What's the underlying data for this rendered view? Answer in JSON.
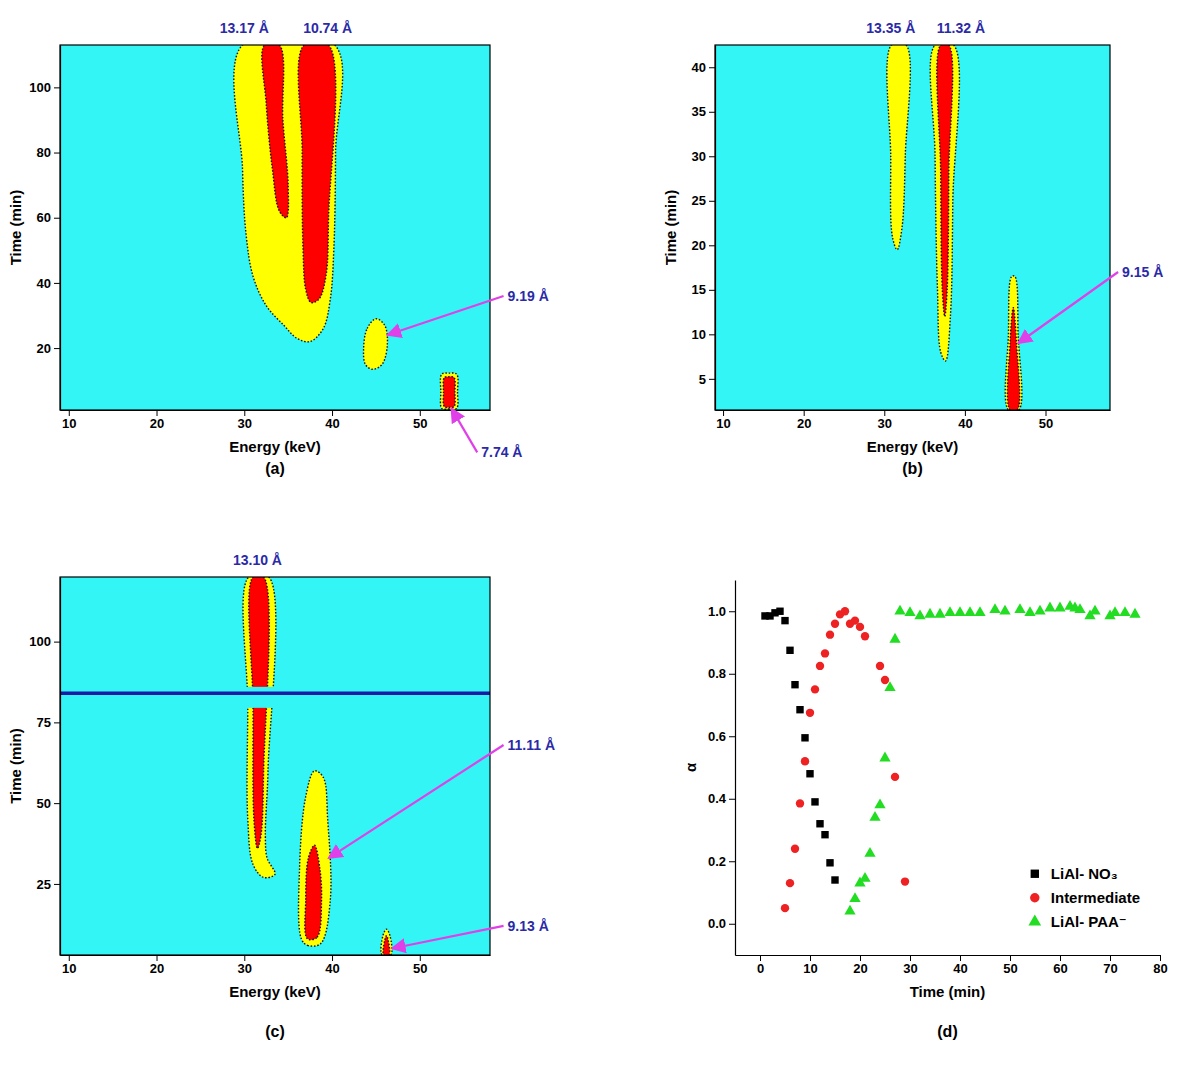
{
  "chart_data": [
    {
      "type": "contour",
      "title": "(a)",
      "x_label": "Energy (keV)",
      "y_label": "Time (min)",
      "xlim": [
        9,
        58
      ],
      "xticks": [
        10,
        20,
        30,
        40,
        50
      ],
      "ylim": [
        1,
        113
      ],
      "yticks": [
        20,
        40,
        60,
        80,
        100
      ],
      "series": [
        {
          "color": "#ffff00",
          "x": [
            29.8,
            40.3,
            40.4,
            40.2,
            39.8,
            39.0,
            37.5,
            36.0,
            34.5,
            32.5,
            31.0,
            30.2,
            29.8
          ],
          "values": [
            113,
            113,
            80,
            50,
            35,
            26,
            22,
            23,
            27,
            33,
            42,
            55,
            75
          ]
        },
        {
          "color": "#ff0000",
          "x": [
            36.8,
            39.6,
            39.6,
            39.3,
            38.5,
            37.6,
            37.0,
            36.7,
            36.6
          ],
          "values": [
            113,
            113,
            60,
            42,
            35,
            34,
            38,
            50,
            80
          ]
        },
        {
          "color": "#ff0000",
          "x": [
            32.3,
            34.0,
            34.4,
            35.0,
            34.8,
            34.0,
            33.2,
            32.5
          ],
          "values": [
            113,
            113,
            90,
            70,
            60,
            62,
            75,
            95
          ]
        },
        {
          "color": "#ffff00",
          "x": [
            43.6,
            44.0,
            45.0,
            46.0,
            46.3,
            45.7,
            44.6,
            43.8
          ],
          "values": [
            20,
            26,
            29,
            27,
            21,
            15,
            13.5,
            15
          ]
        },
        {
          "color": "#ffff00",
          "x": [
            52.5,
            53.3,
            54.2,
            54.3,
            54.2,
            53.3,
            52.5,
            52.4
          ],
          "values": [
            1.5,
            1.3,
            1.5,
            6.5,
            12,
            12.3,
            12,
            6.5
          ]
        },
        {
          "color": "#ff0000",
          "x": [
            52.8,
            53.3,
            53.9,
            54.0,
            53.9,
            53.3,
            52.8,
            52.7
          ],
          "values": [
            2,
            1.8,
            2,
            6.5,
            11,
            11.2,
            11,
            6.5
          ]
        }
      ],
      "annotations": [
        {
          "text": "13.17 Å",
          "x": 30
        },
        {
          "text": "10.74 Å",
          "x": 39.5
        },
        {
          "text": "9.19 Å",
          "x": 46.3,
          "y": 24,
          "text_x": 60,
          "text_y": 36
        },
        {
          "text": "7.74 Å",
          "x": 53.6,
          "y": 1.5,
          "text_x": 57,
          "text_y": -12
        }
      ]
    },
    {
      "type": "contour",
      "title": "(b)",
      "x_label": "Energy (keV)",
      "y_label": "Time (min)",
      "xlim": [
        9,
        58
      ],
      "xticks": [
        10,
        20,
        30,
        40,
        50
      ],
      "ylim": [
        1.5,
        42.5
      ],
      "yticks": [
        5,
        10,
        15,
        20,
        25,
        30,
        35,
        40
      ],
      "series": [
        {
          "color": "#ffff00",
          "x": [
            30.9,
            32.7,
            32.6,
            32.2,
            31.6,
            31.0,
            30.8
          ],
          "values": [
            42.5,
            42.5,
            30,
            22,
            19.5,
            21,
            30
          ]
        },
        {
          "color": "#ffff00",
          "x": [
            36.3,
            38.6,
            38.5,
            38.2,
            37.6,
            37.0,
            36.6,
            36.3
          ],
          "values": [
            42.5,
            42.5,
            25,
            12,
            7,
            8,
            15,
            30
          ]
        },
        {
          "color": "#ff0000",
          "x": [
            37.0,
            38.0,
            38.0,
            37.8,
            37.5,
            37.2,
            37.0
          ],
          "values": [
            42.5,
            42.5,
            28,
            15,
            12,
            15,
            28
          ]
        },
        {
          "color": "#ffff00",
          "x": [
            45.4,
            46.7,
            46.6,
            46.2,
            45.8,
            45.4
          ],
          "values": [
            1.5,
            1.5,
            10,
            16.5,
            16.5,
            10
          ]
        },
        {
          "color": "#ff0000",
          "x": [
            45.6,
            46.5,
            46.4,
            46.0,
            45.6
          ],
          "values": [
            1.5,
            1.5,
            9,
            13,
            9
          ]
        }
      ],
      "annotations": [
        {
          "text": "13.35 Å",
          "x": 30.8
        },
        {
          "text": "11.32 Å",
          "x": 39.5
        },
        {
          "text": "9.15 Å",
          "x": 46.6,
          "y": 9,
          "text_x": 59.5,
          "text_y": 17
        }
      ]
    },
    {
      "type": "contour",
      "title": "(c)",
      "x_label": "Energy (keV)",
      "y_label": "Time (min)",
      "xlim": [
        9,
        58
      ],
      "xticks": [
        10,
        20,
        30,
        40,
        50
      ],
      "ylim": [
        3,
        120
      ],
      "yticks": [
        25,
        50,
        75,
        100
      ],
      "series": [
        {
          "color": "#ffff00",
          "x": [
            30.5,
            32.8,
            32.7,
            32.4,
            32.6,
            33.5,
            32.2,
            31.0,
            30.4,
            30.4
          ],
          "values": [
            120,
            120,
            60,
            40,
            33,
            28,
            27,
            31,
            45,
            80
          ]
        },
        {
          "color": "#ff0000",
          "x": [
            31.0,
            32.2,
            32.2,
            31.9,
            31.5,
            31.1,
            31.0
          ],
          "values": [
            120,
            120,
            60,
            40,
            36,
            45,
            80
          ]
        },
        {
          "color": "#ffff00",
          "x": [
            36.5,
            37.2,
            38.7,
            39.8,
            39.5,
            39.0,
            38.0,
            37.0,
            36.3
          ],
          "values": [
            8,
            6,
            6.5,
            20,
            45,
            58,
            60,
            52,
            30
          ]
        },
        {
          "color": "#ff0000",
          "x": [
            37.2,
            38.3,
            38.8,
            38.6,
            38.0,
            37.3,
            37.0
          ],
          "values": [
            8,
            8.5,
            20,
            30,
            37,
            33,
            20
          ]
        },
        {
          "color": "#ffff00",
          "x": [
            45.7,
            46.7,
            46.6,
            46.2,
            45.8
          ],
          "values": [
            3,
            3,
            9,
            11,
            9
          ]
        },
        {
          "color": "#ff0000",
          "x": [
            45.9,
            46.5,
            46.4,
            46.2,
            46.0
          ],
          "values": [
            3,
            3,
            7.5,
            9,
            7.5
          ]
        }
      ],
      "gap": [
        79.5,
        86
      ],
      "scan_line": 84,
      "annotations": [
        {
          "text": "13.10 Å",
          "x": 31.5
        },
        {
          "text": "11.11 Å",
          "x": 39.6,
          "y": 33,
          "text_x": 60,
          "text_y": 68
        },
        {
          "text": "9.13 Å",
          "x": 46.8,
          "y": 5,
          "text_x": 60,
          "text_y": 12
        }
      ]
    },
    {
      "type": "scatter",
      "title": "(d)",
      "x_label": "Time (min)",
      "y_label": "α",
      "xlim": [
        -5,
        80
      ],
      "xticks": [
        0,
        10,
        20,
        30,
        40,
        50,
        60,
        70,
        80
      ],
      "ylim": [
        -0.1,
        1.1
      ],
      "yticks": [
        {
          "value": 0,
          "label": "0.0"
        },
        0.2,
        0.4,
        0.6,
        0.8,
        {
          "value": 1,
          "label": "1.0"
        }
      ],
      "legend": "lower right",
      "series": [
        {
          "name": "LiAl- NO₃",
          "color": "#000000",
          "marker": "square",
          "x": [
            1,
            2,
            3,
            4,
            5,
            6,
            7,
            8,
            9,
            10,
            11,
            12,
            13,
            14,
            15
          ],
          "values": [
            0.985,
            0.985,
            0.995,
            1.0,
            0.97,
            0.875,
            0.765,
            0.685,
            0.595,
            0.48,
            0.39,
            0.32,
            0.285,
            0.195,
            0.14
          ]
        },
        {
          "name": "Intermediate",
          "color": "#ee2222",
          "marker": "circle",
          "x": [
            5,
            6,
            7,
            8,
            9,
            10,
            11,
            12,
            13,
            14,
            15,
            16,
            17,
            18,
            19,
            20,
            21,
            24,
            25,
            27,
            29
          ],
          "values": [
            0.05,
            0.13,
            0.24,
            0.385,
            0.52,
            0.675,
            0.75,
            0.825,
            0.865,
            0.925,
            0.96,
            0.99,
            1.0,
            0.96,
            0.97,
            0.95,
            0.92,
            0.825,
            0.78,
            0.47,
            0.135
          ]
        },
        {
          "name": "LiAl- PAA⁻",
          "color": "#22dd22",
          "marker": "triangle",
          "x": [
            18,
            19,
            20,
            21,
            22,
            23,
            24,
            25,
            26,
            27,
            28,
            30,
            32,
            34,
            36,
            38,
            40,
            42,
            44,
            47,
            49,
            52,
            54,
            56,
            58,
            60,
            62,
            63,
            64,
            66,
            67,
            70,
            71,
            73,
            75
          ],
          "values": [
            0.04,
            0.08,
            0.13,
            0.145,
            0.225,
            0.34,
            0.38,
            0.53,
            0.755,
            0.91,
            1.0,
            0.995,
            0.985,
            0.99,
            0.99,
            0.995,
            0.995,
            0.995,
            0.995,
            1.005,
            1.0,
            1.005,
            0.995,
            1.0,
            1.01,
            1.01,
            1.015,
            1.01,
            1.005,
            0.985,
            1.0,
            0.985,
            0.995,
            0.995,
            0.99
          ]
        }
      ]
    }
  ]
}
